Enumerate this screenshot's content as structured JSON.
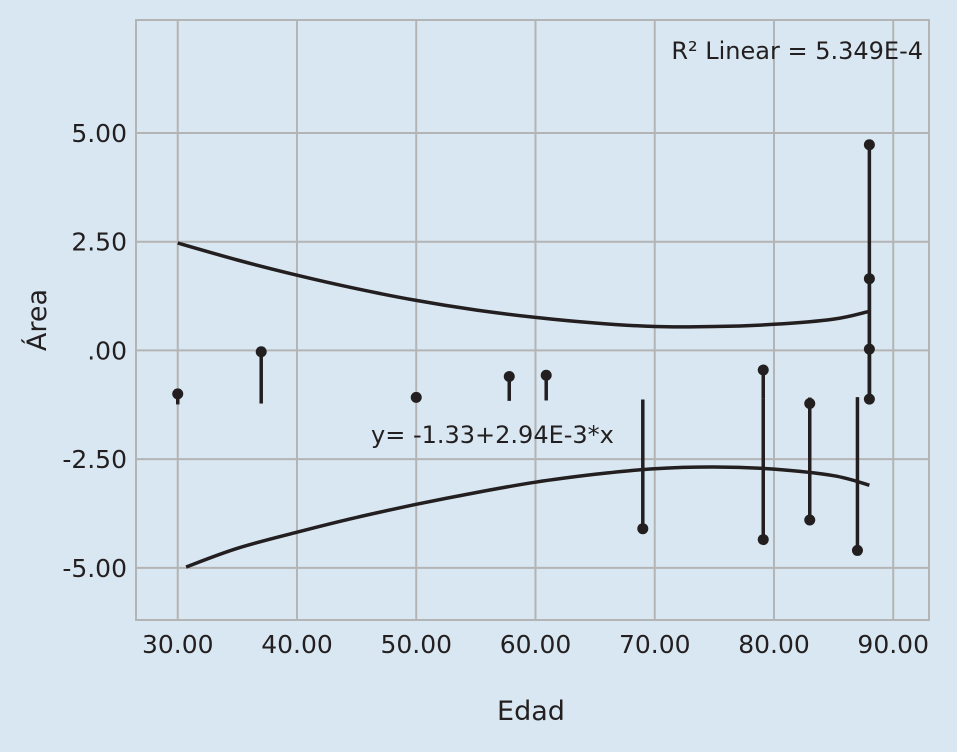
{
  "chart_data": {
    "type": "scatter",
    "xlabel": "Edad",
    "ylabel": "Área",
    "xlim": [
      26.5,
      93.0
    ],
    "ylim": [
      -6.2,
      7.6
    ],
    "x_ticks": [
      "30.00",
      "40.00",
      "50.00",
      "60.00",
      "70.00",
      "80.00",
      "90.00"
    ],
    "x_tick_values": [
      30,
      40,
      50,
      60,
      70,
      80,
      90
    ],
    "y_ticks": [
      "5.00",
      "2.50",
      ".00",
      "-2.50",
      "-5.00"
    ],
    "y_tick_values": [
      5,
      2.5,
      0,
      -2.5,
      -5
    ],
    "grid": true,
    "fit_line": {
      "intercept": -1.33,
      "slope": 0.00294
    },
    "points": [
      {
        "x": 30.0,
        "y": -1.0
      },
      {
        "x": 37.0,
        "y": -0.03
      },
      {
        "x": 50.0,
        "y": -1.08
      },
      {
        "x": 57.8,
        "y": -0.6
      },
      {
        "x": 60.9,
        "y": -0.57
      },
      {
        "x": 69.0,
        "y": -4.1
      },
      {
        "x": 79.1,
        "y": -0.45
      },
      {
        "x": 79.1,
        "y": -4.35
      },
      {
        "x": 83.0,
        "y": -1.22
      },
      {
        "x": 83.0,
        "y": -3.9
      },
      {
        "x": 87.0,
        "y": -4.6
      },
      {
        "x": 88.0,
        "y": 4.73
      },
      {
        "x": 88.0,
        "y": 1.65
      },
      {
        "x": 88.0,
        "y": 0.03
      },
      {
        "x": 88.0,
        "y": -1.12
      }
    ],
    "confidence_upper": [
      [
        30,
        2.47
      ],
      [
        35,
        2.08
      ],
      [
        40,
        1.73
      ],
      [
        45,
        1.42
      ],
      [
        50,
        1.15
      ],
      [
        55,
        0.93
      ],
      [
        60,
        0.76
      ],
      [
        65,
        0.63
      ],
      [
        70,
        0.55
      ],
      [
        75,
        0.55
      ],
      [
        80,
        0.6
      ],
      [
        85,
        0.72
      ],
      [
        88,
        0.9
      ]
    ],
    "confidence_lower": [
      [
        30.7,
        -4.98
      ],
      [
        35,
        -4.55
      ],
      [
        40,
        -4.18
      ],
      [
        45,
        -3.84
      ],
      [
        50,
        -3.54
      ],
      [
        55,
        -3.27
      ],
      [
        60,
        -3.03
      ],
      [
        65,
        -2.85
      ],
      [
        70,
        -2.72
      ],
      [
        75,
        -2.68
      ],
      [
        80,
        -2.73
      ],
      [
        85,
        -2.88
      ],
      [
        88,
        -3.1
      ]
    ],
    "annotations": {
      "r2": "R² Linear = 5.349E-4",
      "equation": "y= -1.33+2.94E-3*x"
    },
    "colors": {
      "background": "#d8e7f1",
      "grid": "#b4b4b4",
      "marks": "#231f20"
    }
  }
}
